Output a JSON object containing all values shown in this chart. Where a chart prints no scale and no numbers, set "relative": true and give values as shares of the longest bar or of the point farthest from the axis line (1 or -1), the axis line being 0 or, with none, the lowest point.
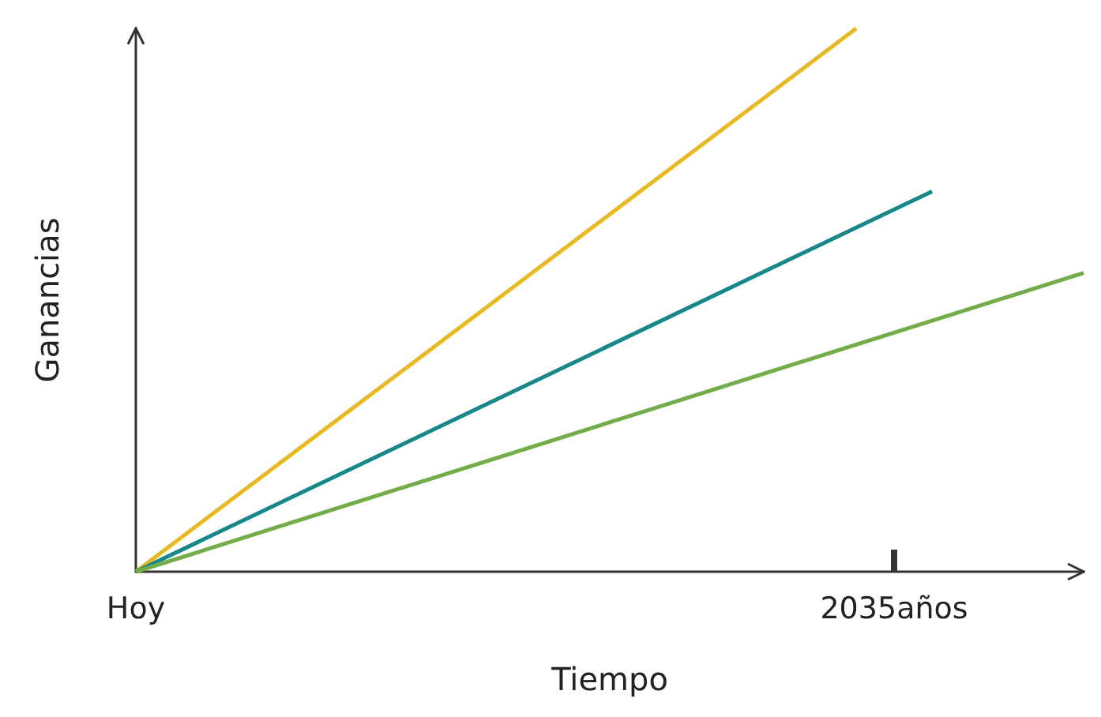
{
  "chart_data": {
    "type": "line",
    "relative": true,
    "xlabel": "Tiempo",
    "ylabel": "Ganancias",
    "grid": false,
    "marker": "none",
    "line_style": "solid",
    "categories": [
      "Hoy",
      null,
      null,
      null,
      null,
      null,
      null,
      null,
      null,
      null,
      null,
      null,
      null,
      null,
      null,
      null,
      null,
      null,
      null,
      null,
      "2035años",
      null,
      null,
      null,
      null,
      null
    ],
    "series": [
      {
        "color": "#e8b923",
        "values": [
          0,
          null,
          null,
          null,
          null,
          null,
          null,
          null,
          null,
          null,
          null,
          null,
          null,
          null,
          null,
          null,
          null,
          null,
          null,
          1,
          null,
          null,
          null,
          null,
          null,
          null
        ]
      },
      {
        "color": "#17878a",
        "values": [
          0,
          null,
          null,
          null,
          null,
          null,
          null,
          null,
          null,
          null,
          null,
          null,
          null,
          null,
          null,
          null,
          null,
          null,
          null,
          null,
          null,
          0.7,
          null,
          null,
          null,
          null
        ]
      },
      {
        "color": "#72ad4a",
        "values": [
          0,
          null,
          null,
          null,
          null,
          null,
          null,
          null,
          null,
          null,
          null,
          null,
          null,
          null,
          null,
          null,
          null,
          null,
          null,
          null,
          null,
          null,
          null,
          null,
          null,
          0.55
        ]
      }
    ]
  }
}
